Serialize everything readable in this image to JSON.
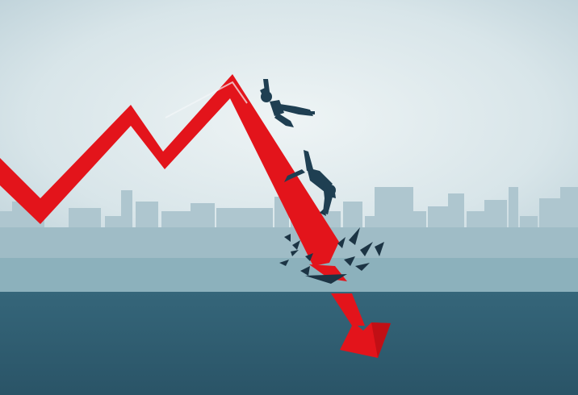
{
  "scene": {
    "kind": "illustration",
    "colors": {
      "sky_center": "#eef4f5",
      "sky_edge": "#b9ced6",
      "skyline": "#aac3cc",
      "ground_top": "#8fb4bf",
      "water": "#2f5c70",
      "arrow": "#e3141b",
      "arrow_shadow": "#b50d12",
      "figure": "#1f3f52",
      "cracks": "#1c3444"
    },
    "icons": [
      "zigzag-trend-arrow-icon",
      "falling-person-icon",
      "falling-person-icon",
      "ground-crack-icon"
    ]
  }
}
